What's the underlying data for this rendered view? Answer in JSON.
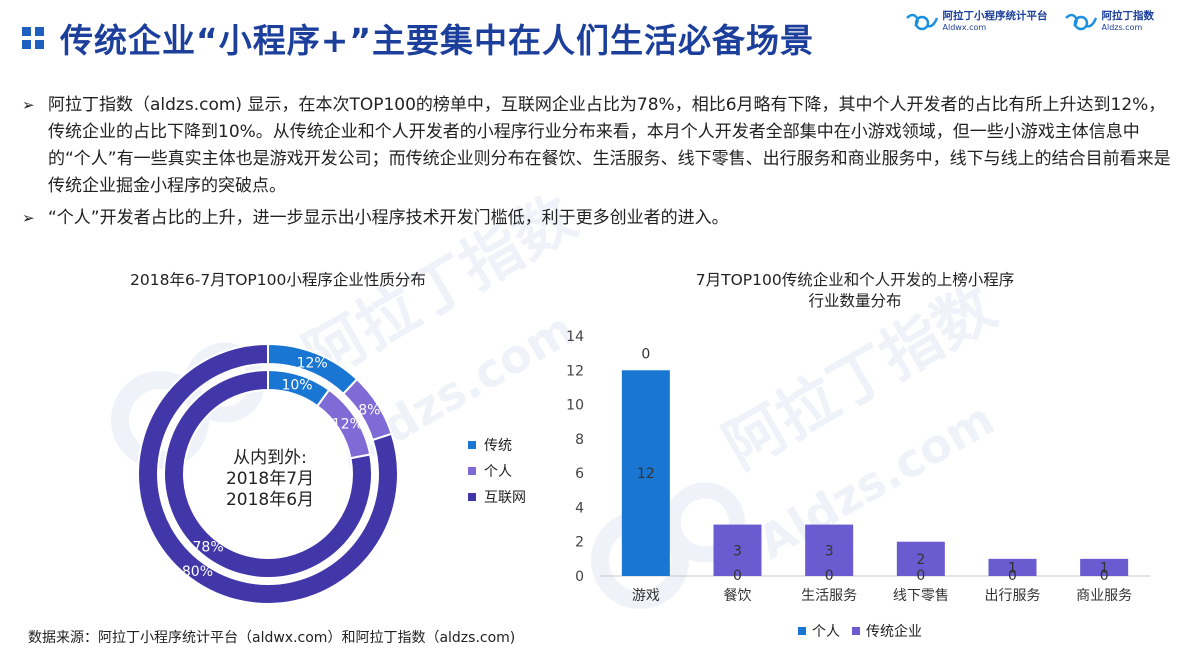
{
  "header": {
    "title": "传统企业“小程序+”主要集中在人们生活必备场景",
    "logos": [
      {
        "name": "阿拉丁小程序统计平台",
        "url": "Aldwx.com"
      },
      {
        "name": "阿拉丁指数",
        "url": "Aldzs.com"
      }
    ]
  },
  "bullets": [
    {
      "marker": "➢",
      "text": "阿拉丁指数（aldzs.com) 显示，在本次TOP100的榜单中，互联网企业占比为78%，相比6月略有下降，其中个人开发者的占比有所上升达到12%，传统企业的占比下降到10%。从传统企业和个人开发者的小程序行业分布来看，本月个人开发者全部集中在小游戏领域，但一些小游戏主体信息中的“个人”有一些真实主体也是游戏开发公司；而传统企业则分布在餐饮、生活服务、线下零售、出行服务和商业服务中，线下与线上的结合目前看来是传统企业掘金小程序的突破点。"
    },
    {
      "marker": "➢",
      "text": " “个人”开发者占比的上升，进一步显示出小程序技术开发门槛低，利于更多创业者的进入。"
    }
  ],
  "watermark": {
    "brand": "阿拉丁指数",
    "url": "Aldzs.com"
  },
  "chart_data": [
    {
      "type": "pie",
      "title": "2018年6-7月TOP100小程序企业性质分布",
      "center_text": [
        "从内到外:",
        "2018年7月",
        "2018年6月"
      ],
      "categories": [
        "传统",
        "个人",
        "互联网"
      ],
      "colors": [
        "#1976d2",
        "#7f6bd6",
        "#4237a8"
      ],
      "series": [
        {
          "name": "2018年7月",
          "ring": "inner",
          "values": [
            10,
            12,
            78
          ],
          "labels": [
            "10%",
            "12%",
            "78%"
          ]
        },
        {
          "name": "2018年6月",
          "ring": "outer",
          "values": [
            12,
            8,
            80
          ],
          "labels": [
            "12%",
            "8%",
            "80%"
          ]
        }
      ],
      "legend": "right"
    },
    {
      "type": "bar",
      "stacked": true,
      "title": "7月TOP100传统企业和个人开发的上榜小程序行业数量分布",
      "title_lines": [
        "7月TOP100传统企业和个人开发的上榜小程序",
        "行业数量分布"
      ],
      "categories": [
        "游戏",
        "餐饮",
        "生活服务",
        "线下零售",
        "出行服务",
        "商业服务"
      ],
      "series": [
        {
          "name": "个人",
          "color": "#1976d2",
          "values": [
            12,
            0,
            0,
            0,
            0,
            0
          ]
        },
        {
          "name": "传统企业",
          "color": "#6a5cd0",
          "values": [
            0,
            3,
            3,
            2,
            1,
            1
          ]
        }
      ],
      "ylim": [
        0,
        14
      ],
      "yticks": [
        0,
        2,
        4,
        6,
        8,
        10,
        12,
        14
      ],
      "legend": "bottom",
      "grid": false
    }
  ],
  "source": "数据来源：阿拉丁小程序统计平台（aldwx.com）和阿拉丁指数（aldzs.com)"
}
